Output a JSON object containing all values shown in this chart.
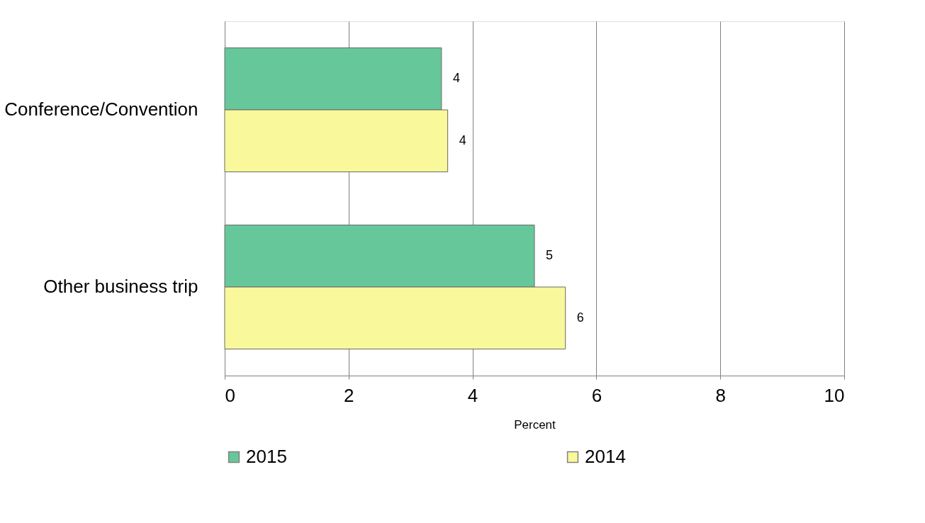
{
  "chart_data": {
    "type": "bar",
    "orientation": "horizontal",
    "xlabel": "Percent",
    "categories": [
      "Conference/Convention",
      "Other business trip"
    ],
    "series": [
      {
        "name": "2015",
        "color": "#66c89a",
        "values": [
          3.5,
          5.0
        ],
        "value_labels": [
          "4",
          "5"
        ]
      },
      {
        "name": "2014",
        "color": "#f9f89a",
        "values": [
          3.6,
          5.5
        ],
        "value_labels": [
          "4",
          "6"
        ]
      }
    ],
    "xlim": [
      0,
      10
    ],
    "xticks": [
      0,
      2,
      4,
      6,
      8,
      10
    ],
    "grid": "x",
    "legend": "bottom"
  }
}
